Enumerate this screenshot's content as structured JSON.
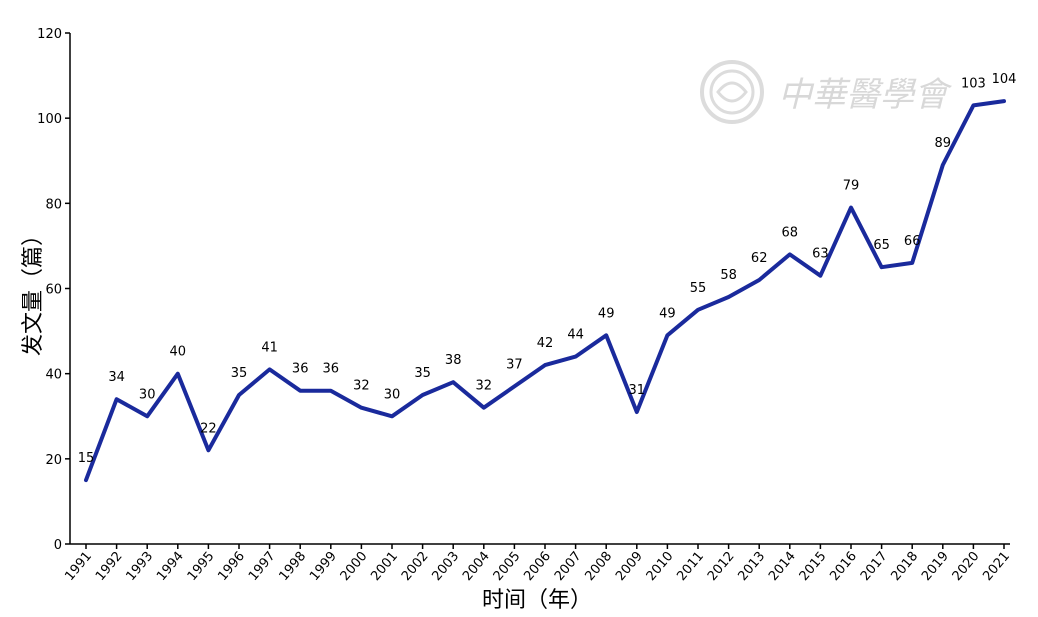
{
  "chart_data": {
    "type": "line",
    "title": "",
    "xlabel": "时间（年）",
    "ylabel": "发文量（篇）",
    "x": [
      "1991",
      "1992",
      "1993",
      "1994",
      "1995",
      "1996",
      "1997",
      "1998",
      "1999",
      "2000",
      "2001",
      "2002",
      "2003",
      "2004",
      "2005",
      "2006",
      "2007",
      "2008",
      "2009",
      "2010",
      "2011",
      "2012",
      "2013",
      "2014",
      "2015",
      "2016",
      "2017",
      "2018",
      "2019",
      "2020",
      "2021"
    ],
    "series": [
      {
        "values": [
          15,
          34,
          30,
          40,
          22,
          35,
          41,
          36,
          36,
          32,
          30,
          35,
          38,
          32,
          37,
          42,
          44,
          49,
          31,
          49,
          55,
          58,
          62,
          68,
          63,
          79,
          65,
          66,
          89,
          103,
          104
        ]
      }
    ],
    "ylim": [
      0,
      120
    ],
    "yticks": [
      0,
      20,
      40,
      60,
      80,
      100,
      120
    ],
    "grid": false,
    "line_color": "#1a2a9c",
    "data_labels": true
  },
  "watermark": {
    "text": "中華醫學會",
    "icon": "society-emblem-icon",
    "color": "#d8d8d8"
  }
}
